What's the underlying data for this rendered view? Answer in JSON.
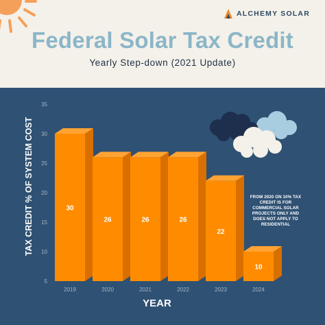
{
  "brand": {
    "name": "ALCHEMY SOLAR",
    "icon": "alchemy-logo-icon"
  },
  "header": {
    "title": "Federal Solar Tax Credit",
    "subtitle": "Yearly Step-down (2021 Update)"
  },
  "note": "FROM 2020 ON 10% TAX CREDIT IS FOR COMMERCIAL SOLAR PROJECTS ONLY AND DOES NOT APPLY TO RESIDENTIAL",
  "colors": {
    "bar_front": "#ff8c00",
    "bar_side": "#d96f00",
    "bar_top": "#ffa333",
    "panel": "#2f5173",
    "title": "#8bb6c8",
    "sun": "#f5a05a"
  },
  "chart_data": {
    "type": "bar",
    "categories": [
      "2019",
      "2020",
      "2021",
      "2022",
      "2023",
      "2024"
    ],
    "values": [
      30,
      26,
      26,
      26,
      22,
      10
    ],
    "data_labels": [
      "30",
      "26",
      "26",
      "26",
      "22",
      "10"
    ],
    "xlabel": "YEAR",
    "ylabel": "TAX CREDIT % OF SYSTEM COST",
    "ylim": [
      5,
      35
    ],
    "yticks": [
      "5",
      "10",
      "15",
      "20",
      "25",
      "30",
      "35"
    ],
    "grid": false,
    "legend": "none"
  }
}
